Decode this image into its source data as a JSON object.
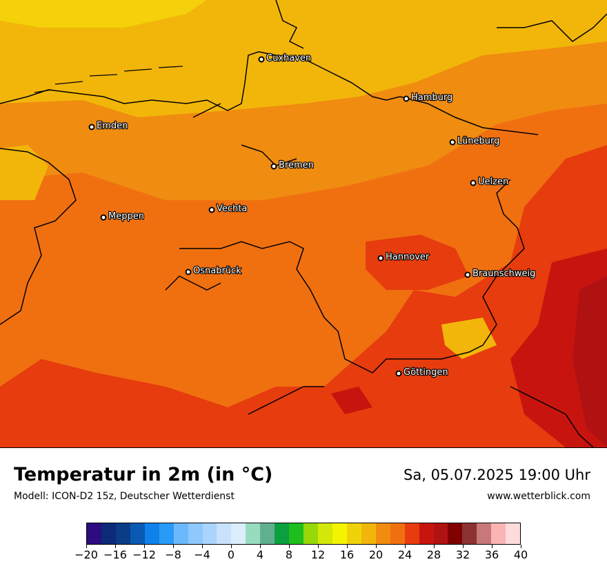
{
  "header": {
    "title": "Temperatur in 2m (in °C)",
    "subtitle": "Modell: ICON-D2 15z, Deutscher Wetterdienst",
    "datetime": "Sa, 05.07.2025 19:00 Uhr",
    "website": "www.wetterblick.com"
  },
  "cities": [
    {
      "name": "Cuxhaven"
    },
    {
      "name": "Hamburg"
    },
    {
      "name": "Emden"
    },
    {
      "name": "Lüneburg"
    },
    {
      "name": "Bremen"
    },
    {
      "name": "Uelzen"
    },
    {
      "name": "Vechta"
    },
    {
      "name": "Meppen"
    },
    {
      "name": "Hannover"
    },
    {
      "name": "Osnabrück"
    },
    {
      "name": "Braunschweig"
    },
    {
      "name": "Göttingen"
    }
  ],
  "legend": {
    "tick_labels": [
      "−20",
      "−16",
      "−12",
      "−8",
      "−4",
      "0",
      "4",
      "8",
      "12",
      "16",
      "20",
      "24",
      "28",
      "32",
      "36",
      "40"
    ],
    "colors": [
      "#2c0c80",
      "#0c2a78",
      "#0a3c88",
      "#0a5ab4",
      "#0e82ea",
      "#2a9af8",
      "#6cb8fc",
      "#8ec8fc",
      "#aad4fc",
      "#c8e2fc",
      "#dceefc",
      "#98dcc0",
      "#60b090",
      "#0aa040",
      "#1ebe1e",
      "#98d808",
      "#d2e808",
      "#f4f400",
      "#f0d20a",
      "#f2b60a",
      "#f08c10",
      "#f07010",
      "#e63c0e",
      "#c8140e",
      "#b01212",
      "#800000",
      "#8c3232",
      "#c87878",
      "#fab4b4",
      "#ffdcdc"
    ]
  },
  "map": {
    "colors": {
      "sea": "#f2c20a",
      "band_20": "#f2b60a",
      "band_22": "#f08c10",
      "band_24": "#f07010",
      "band_26": "#e63c0e",
      "band_28": "#c8140e",
      "band_30": "#b01212"
    }
  }
}
